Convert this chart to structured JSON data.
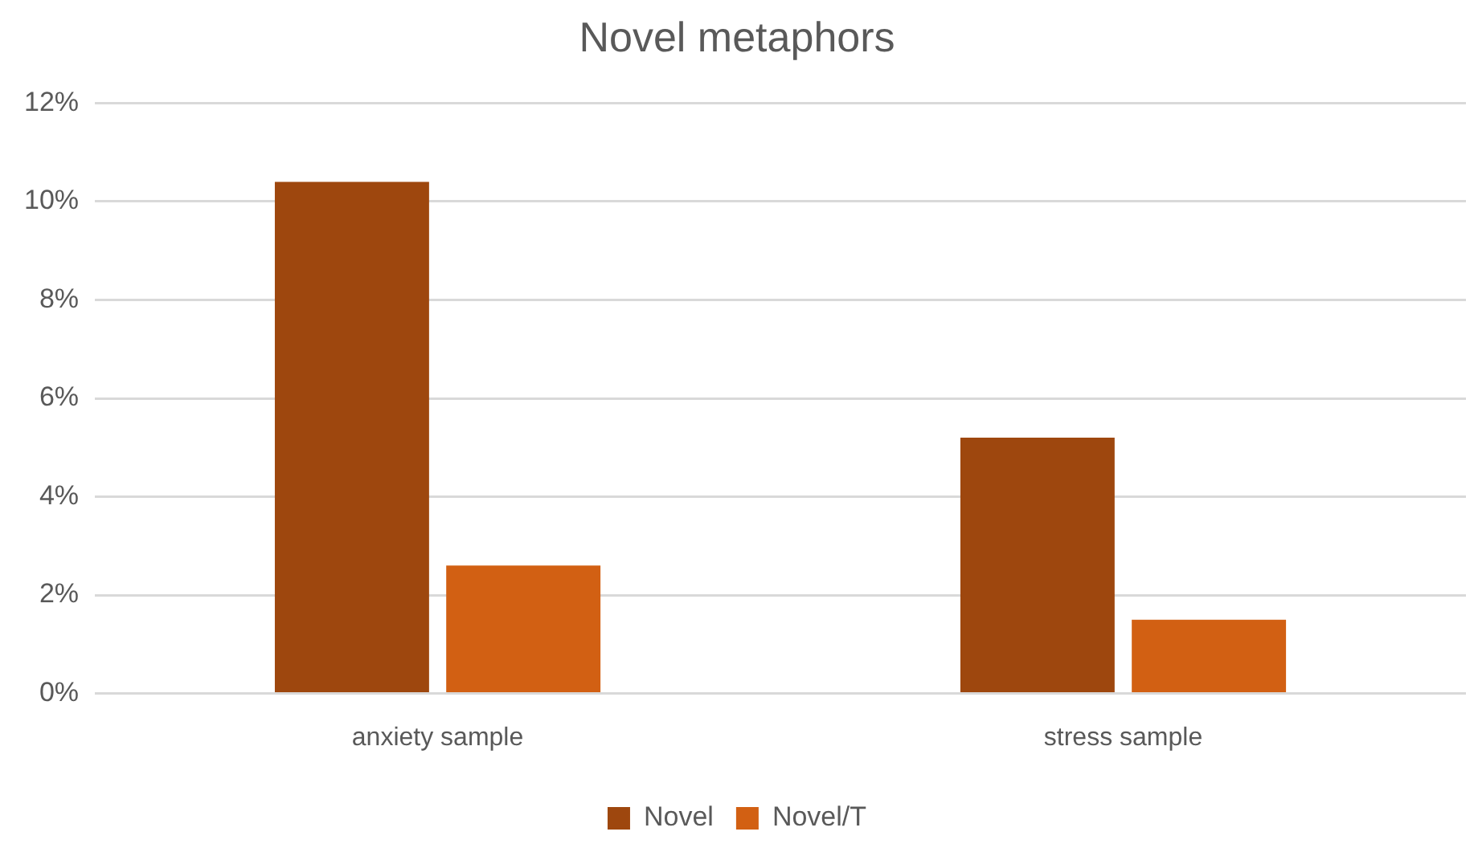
{
  "chart_data": {
    "type": "bar",
    "title": "Novel metaphors",
    "categories": [
      "anxiety sample",
      "stress sample"
    ],
    "series": [
      {
        "name": "Novel",
        "color": "#9e470e",
        "values": [
          10.4,
          5.2
        ]
      },
      {
        "name": "Novel/T",
        "color": "#d26013",
        "values": [
          2.6,
          1.5
        ]
      }
    ],
    "ylim": [
      0,
      12
    ],
    "yticks": [
      {
        "value": 0,
        "label": "0%"
      },
      {
        "value": 2,
        "label": "2%"
      },
      {
        "value": 4,
        "label": "4%"
      },
      {
        "value": 6,
        "label": "6%"
      },
      {
        "value": 8,
        "label": "8%"
      },
      {
        "value": 10,
        "label": "10%"
      },
      {
        "value": 12,
        "label": "12%"
      }
    ],
    "grid": "y",
    "legend": "bottom"
  }
}
